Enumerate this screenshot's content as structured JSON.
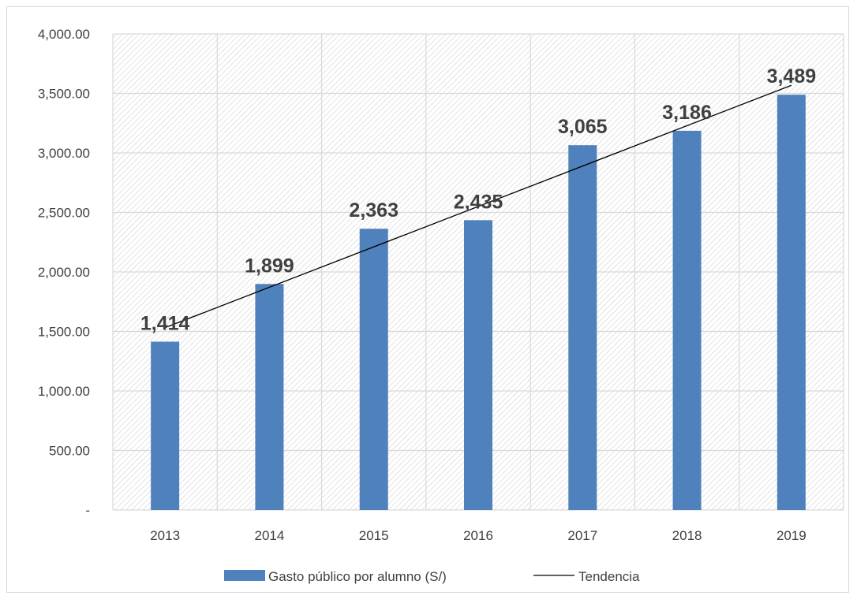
{
  "chart_data": {
    "type": "bar",
    "title": "",
    "xlabel": "",
    "ylabel": "",
    "categories": [
      "2013",
      "2014",
      "2015",
      "2016",
      "2017",
      "2018",
      "2019"
    ],
    "series": [
      {
        "name": "Gasto público por alumno (S/)",
        "values": [
          1414,
          1899,
          2363,
          2435,
          3065,
          3186,
          3489
        ],
        "data_labels": [
          "1,414",
          "1,899",
          "2,363",
          "2,435",
          "3,065",
          "3,186",
          "3,489"
        ],
        "color": "#4f81bd"
      }
    ],
    "trendline": {
      "name": "Tendencia",
      "type": "linear",
      "color": "#000000"
    },
    "ylim": [
      0,
      4000
    ],
    "yticks": [
      0,
      500,
      1000,
      1500,
      2000,
      2500,
      3000,
      3500,
      4000
    ],
    "ytick_labels": [
      "-",
      "500.00",
      "1,000.00",
      "1,500.00",
      "2,000.00",
      "2,500.00",
      "3,000.00",
      "3,500.00",
      "4,000.00"
    ],
    "grid": true,
    "legend_position": "bottom",
    "colors": {
      "bar": "#4f81bd",
      "grid": "#d9d9d9",
      "hatch": "#d0d0d0",
      "text": "#404040",
      "data_label": "#404040",
      "trend": "#000000"
    }
  }
}
